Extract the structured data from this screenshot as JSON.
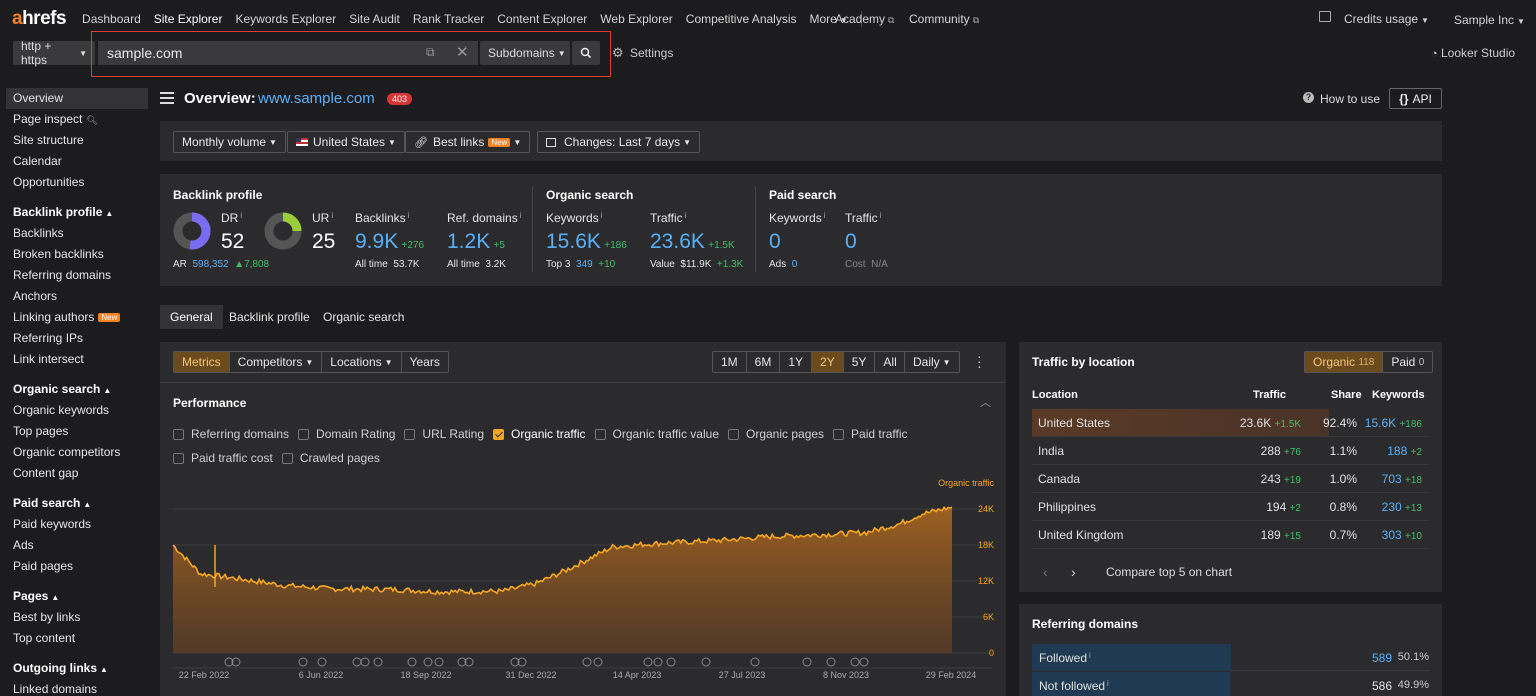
{
  "nav": {
    "logo_a": "a",
    "logo_rest": "hrefs",
    "items": [
      "Dashboard",
      "Site Explorer",
      "Keywords Explorer",
      "Site Audit",
      "Rank Tracker",
      "Content Explorer",
      "Web Explorer",
      "Competitive Analysis",
      "More"
    ],
    "academy": "Academy",
    "community": "Community",
    "credits": "Credits usage",
    "account": "Sample Inc"
  },
  "searchbar": {
    "protocol": "http + https",
    "url": "sample.com",
    "mode": "Subdomains",
    "settings": "Settings",
    "looker": "Looker Studio"
  },
  "sidebar": {
    "top": [
      "Overview",
      "Page inspect",
      "Site structure",
      "Calendar",
      "Opportunities"
    ],
    "backlink_head": "Backlink profile",
    "backlink": [
      "Backlinks",
      "Broken backlinks",
      "Referring domains",
      "Anchors",
      "Linking authors",
      "Referring IPs",
      "Link intersect"
    ],
    "new": "New",
    "organic_head": "Organic search",
    "organic": [
      "Organic keywords",
      "Top pages",
      "Organic competitors",
      "Content gap"
    ],
    "paid_head": "Paid search",
    "paid": [
      "Paid keywords",
      "Ads",
      "Paid pages"
    ],
    "pages_head": "Pages",
    "pages": [
      "Best by links",
      "Top content"
    ],
    "outgoing_head": "Outgoing links",
    "outgoing": [
      "Linked domains"
    ]
  },
  "header": {
    "title": "Overview:",
    "domain": "www.sample.com",
    "badge": "403",
    "howto": "How to use",
    "api": "API"
  },
  "filters": {
    "volume": "Monthly volume",
    "country": "United States",
    "bestlinks": "Best links",
    "new": "New",
    "changes": "Changes: Last 7 days"
  },
  "metrics": {
    "backlink_title": "Backlink profile",
    "dr_label": "DR",
    "dr": "52",
    "ur_label": "UR",
    "ur": "25",
    "ar_label": "AR",
    "ar": "598,352",
    "ar_delta": "▲7,808",
    "backlinks_label": "Backlinks",
    "backlinks": "9.9K",
    "backlinks_delta": "+276",
    "backlinks_all": "All time",
    "backlinks_all_v": "53.7K",
    "refdomains_label": "Ref. domains",
    "refdomains": "1.2K",
    "refdomains_delta": "+5",
    "refdomains_all": "All time",
    "refdomains_all_v": "3.2K",
    "organic_title": "Organic search",
    "kw_label": "Keywords",
    "kw": "15.6K",
    "kw_delta": "+186",
    "top3_label": "Top 3",
    "top3": "349",
    "top3_delta": "+10",
    "traffic_label": "Traffic",
    "traffic": "23.6K",
    "traffic_delta": "+1.5K",
    "value_label": "Value",
    "value": "$11.9K",
    "value_delta": "+1.3K",
    "paid_title": "Paid search",
    "pkw_label": "Keywords",
    "pkw": "0",
    "ads_label": "Ads",
    "ads": "0",
    "ptraffic_label": "Traffic",
    "ptraffic": "0",
    "cost_label": "Cost",
    "cost": "N/A",
    "dr_fraction": 0.52,
    "ur_fraction": 0.25
  },
  "tabs": [
    "General",
    "Backlink profile",
    "Organic search"
  ],
  "chartbar": {
    "seg": [
      "Metrics",
      "Competitors",
      "Locations",
      "Years"
    ],
    "ranges": [
      "1M",
      "6M",
      "1Y",
      "2Y",
      "5Y",
      "All"
    ],
    "active_range": "2Y",
    "interval": "Daily"
  },
  "performance": {
    "title": "Performance",
    "checks": [
      "Referring domains",
      "Domain Rating",
      "URL Rating",
      "Organic traffic",
      "Organic traffic value",
      "Organic pages",
      "Paid traffic",
      "Paid traffic cost",
      "Crawled pages"
    ],
    "checked": "Organic traffic"
  },
  "chart_data": {
    "type": "area",
    "series": [
      {
        "name": "Organic traffic",
        "color": "#f5a623",
        "x": [
          "2022-02-22",
          "2022-03-20",
          "2022-04-20",
          "2022-06-06",
          "2022-07-20",
          "2022-09-18",
          "2022-11-01",
          "2022-12-31",
          "2023-02-01",
          "2023-03-01",
          "2023-04-14",
          "2023-05-20",
          "2023-07-27",
          "2023-09-10",
          "2023-11-08",
          "2023-12-10",
          "2024-01-10",
          "2024-02-01",
          "2024-02-29"
        ],
        "values": [
          18000,
          13200,
          12500,
          11300,
          10700,
          10600,
          10200,
          10300,
          11600,
          13800,
          17700,
          18200,
          18800,
          19400,
          19800,
          20100,
          21500,
          23200,
          24300
        ]
      }
    ],
    "xticks": [
      "22 Feb 2022",
      "6 Jun 2022",
      "18 Sep 2022",
      "31 Dec 2022",
      "14 Apr 2023",
      "27 Jul 2023",
      "8 Nov 2023",
      "29 Feb 2024"
    ],
    "yticks": [
      "24K",
      "18K",
      "12K",
      "6K",
      "0"
    ],
    "ylim": [
      0,
      26000
    ],
    "grid": true,
    "legend": "top-right"
  },
  "location": {
    "title": "Traffic by location",
    "organic_label": "Organic",
    "organic_count": "118",
    "paid_label": "Paid",
    "paid_count": "0",
    "headers": [
      "Location",
      "Traffic",
      "Share",
      "Keywords"
    ],
    "rows": [
      {
        "name": "United States",
        "traffic": "23.6K",
        "td": "+1.5K",
        "share": "92.4%",
        "kw": "15.6K",
        "kd": "+186"
      },
      {
        "name": "India",
        "traffic": "288",
        "td": "+76",
        "share": "1.1%",
        "kw": "188",
        "kd": "+2"
      },
      {
        "name": "Canada",
        "traffic": "243",
        "td": "+19",
        "share": "1.0%",
        "kw": "703",
        "kd": "+18"
      },
      {
        "name": "Philippines",
        "traffic": "194",
        "td": "+2",
        "share": "0.8%",
        "kw": "230",
        "kd": "+13"
      },
      {
        "name": "United Kingdom",
        "traffic": "189",
        "td": "+15",
        "share": "0.7%",
        "kw": "303",
        "kd": "+10"
      }
    ],
    "compare": "Compare top 5 on chart"
  },
  "refdomains": {
    "title": "Referring domains",
    "followed": "Followed",
    "followed_v": "589",
    "followed_p": "50.1%",
    "notfollowed": "Not followed",
    "notfollowed_v": "586",
    "notfollowed_p": "49.9%"
  }
}
